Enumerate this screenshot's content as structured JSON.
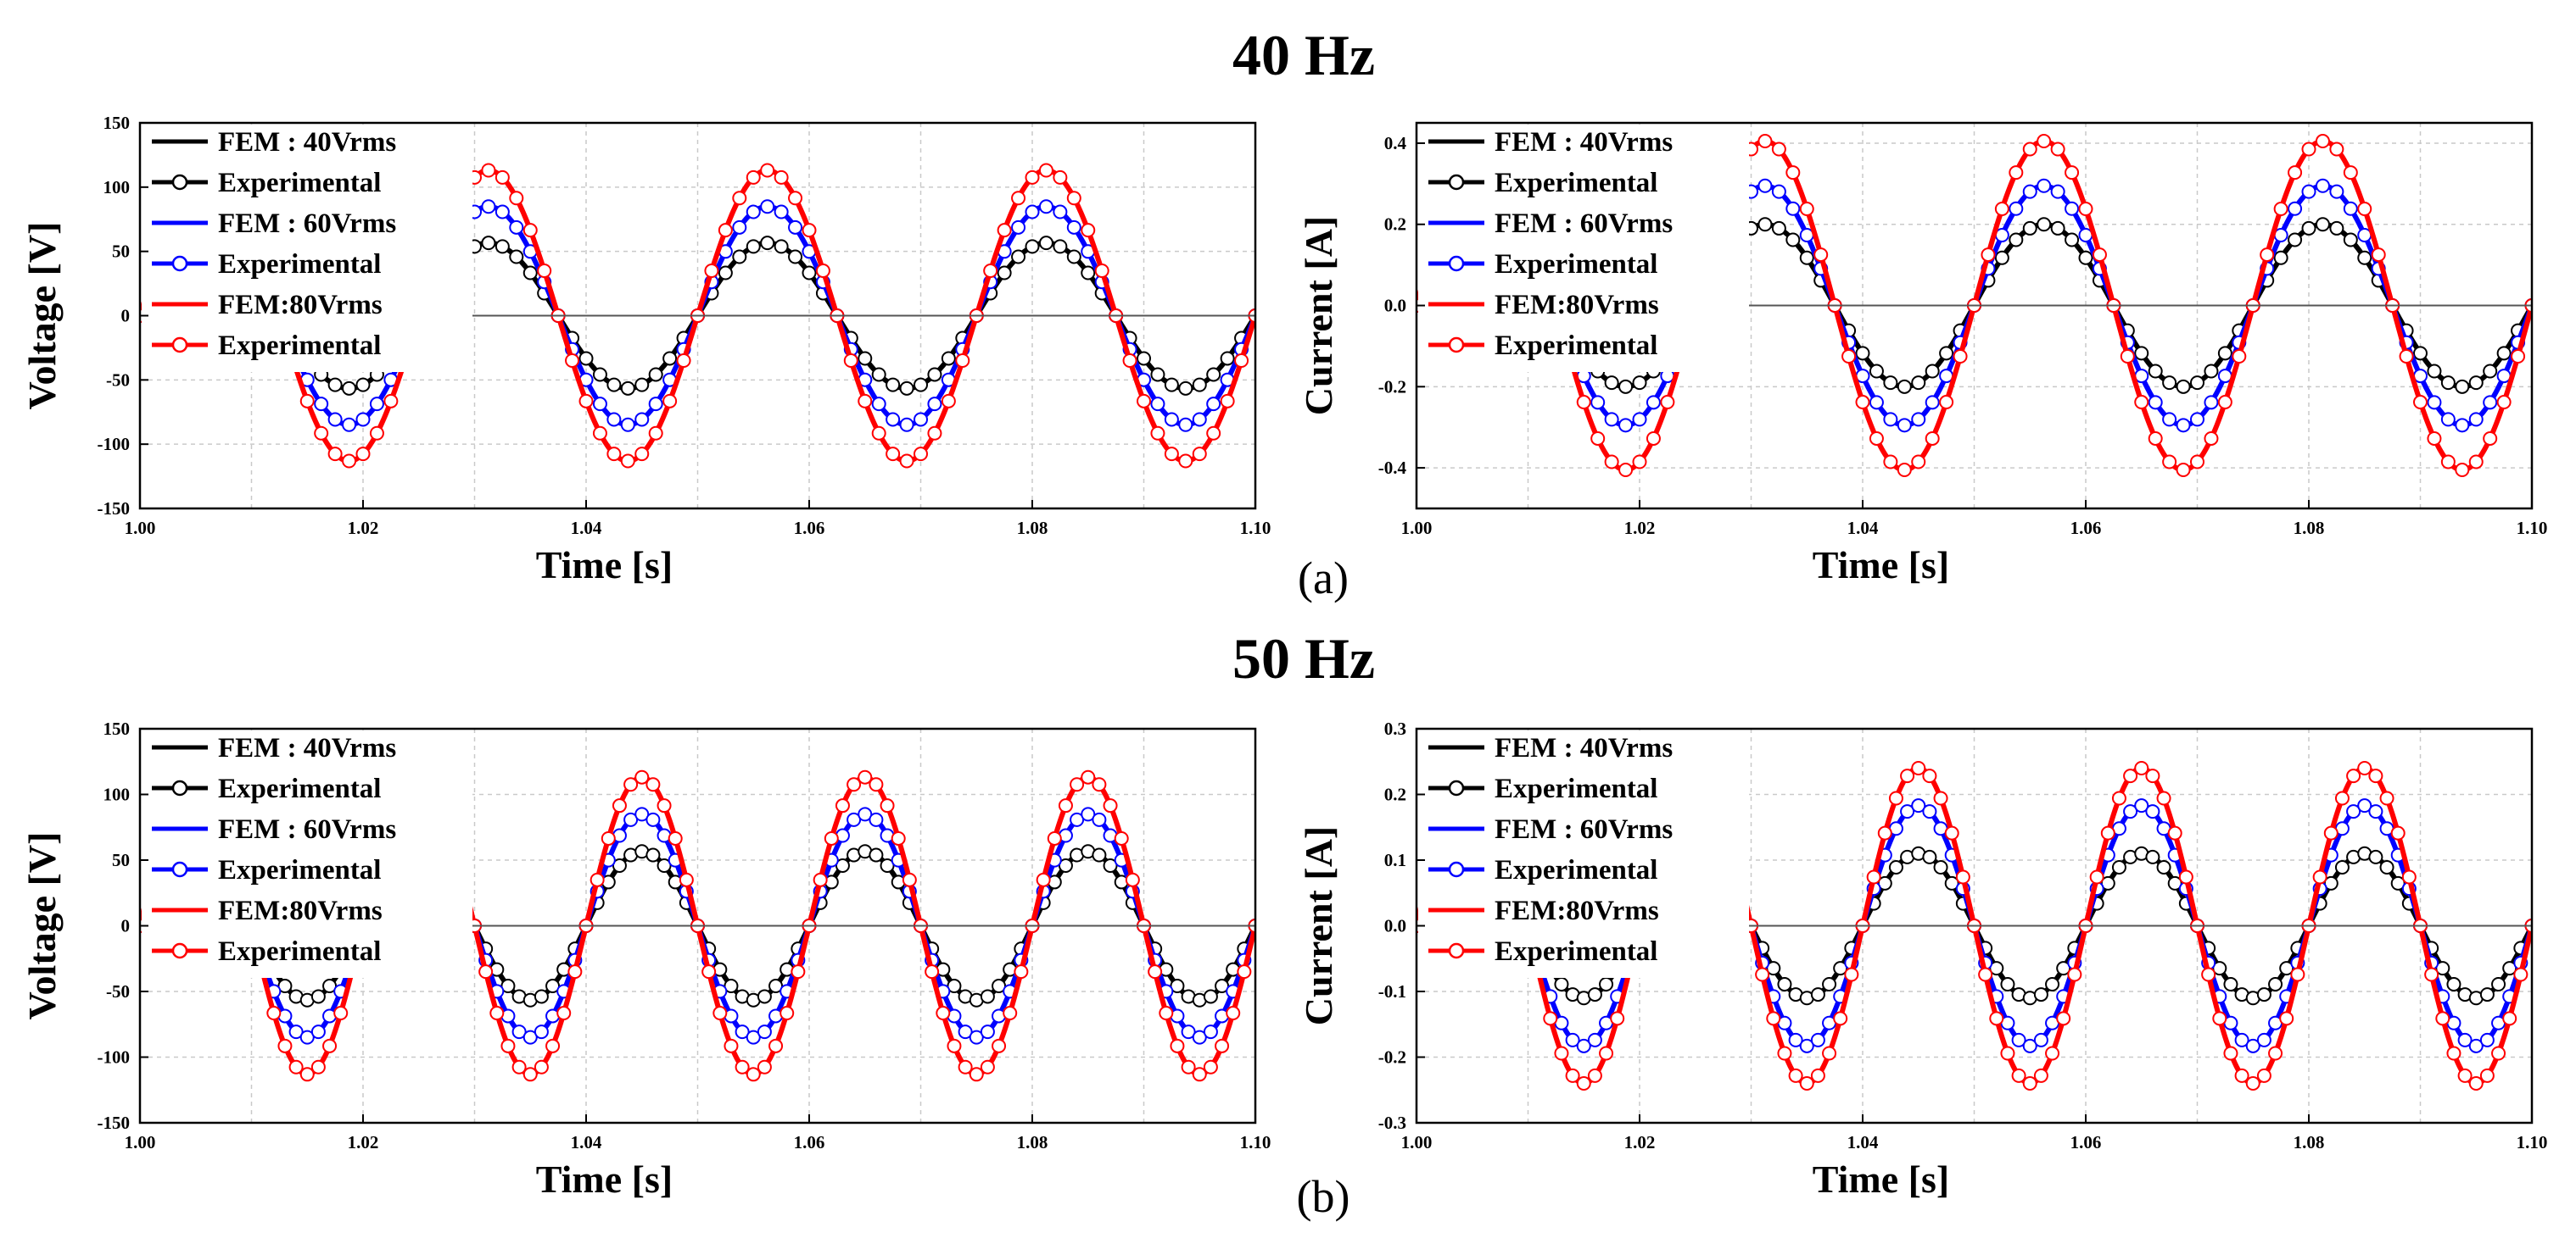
{
  "figure": {
    "sections": [
      {
        "title": "40 Hz",
        "caption": "(a)"
      },
      {
        "title": "50 Hz",
        "caption": "(b)"
      }
    ]
  },
  "colors": {
    "fem_40": "#000000",
    "fem_60": "#0000ff",
    "fem_80": "#ff0000",
    "grid": "#c9c9c9"
  },
  "chart_data": [
    {
      "type": "line",
      "xlabel": "Time [s]",
      "ylabel": "Voltage [V]",
      "xlim": [
        1.0,
        1.1
      ],
      "ylim": [
        -150,
        150
      ],
      "xticks": [
        "1.00",
        "1.02",
        "1.04",
        "1.06",
        "1.08",
        "1.10"
      ],
      "yticks": [
        "150",
        "100",
        "50",
        "0",
        "-50",
        "-100",
        "-150"
      ],
      "frequency_hz": 40,
      "legend": "top-left",
      "grid": true,
      "series": [
        {
          "name": "FEM : 40Vrms",
          "amplitude": 56.6,
          "color": "#000000",
          "markers": false
        },
        {
          "name": "Experimental",
          "amplitude": 56.6,
          "color": "#000000",
          "markers": true
        },
        {
          "name": "FEM : 60Vrms",
          "amplitude": 84.9,
          "color": "#0000ff",
          "markers": false
        },
        {
          "name": "Experimental",
          "amplitude": 84.9,
          "color": "#0000ff",
          "markers": true
        },
        {
          "name": "FEM:80Vrms",
          "amplitude": 113.1,
          "color": "#ff0000",
          "markers": false
        },
        {
          "name": "Experimental",
          "amplitude": 113.1,
          "color": "#ff0000",
          "markers": true
        }
      ]
    },
    {
      "type": "line",
      "xlabel": "Time [s]",
      "ylabel": "Current [A]",
      "xlim": [
        1.0,
        1.1
      ],
      "ylim": [
        -0.5,
        0.45
      ],
      "xticks": [
        "1.00",
        "1.02",
        "1.04",
        "1.06",
        "1.08",
        "1.10"
      ],
      "yticks": [
        "0.4",
        "0.2",
        "0.0",
        "-0.2",
        "-0.4"
      ],
      "frequency_hz": 40,
      "legend": "top-left",
      "grid": true,
      "series": [
        {
          "name": "FEM : 40Vrms",
          "amplitude": 0.2,
          "color": "#000000",
          "markers": false
        },
        {
          "name": "Experimental",
          "amplitude": 0.2,
          "color": "#000000",
          "markers": true
        },
        {
          "name": "FEM : 60Vrms",
          "amplitude": 0.295,
          "color": "#0000ff",
          "markers": false
        },
        {
          "name": "Experimental",
          "amplitude": 0.295,
          "color": "#0000ff",
          "markers": true
        },
        {
          "name": "FEM:80Vrms",
          "amplitude": 0.405,
          "color": "#ff0000",
          "markers": false
        },
        {
          "name": "Experimental",
          "amplitude": 0.405,
          "color": "#ff0000",
          "markers": true
        }
      ]
    },
    {
      "type": "line",
      "xlabel": "Time [s]",
      "ylabel": "Voltage [V]",
      "xlim": [
        1.0,
        1.1
      ],
      "ylim": [
        -150,
        150
      ],
      "xticks": [
        "1.00",
        "1.02",
        "1.04",
        "1.06",
        "1.08",
        "1.10"
      ],
      "yticks": [
        "150",
        "100",
        "50",
        "0",
        "-50",
        "-100",
        "-150"
      ],
      "frequency_hz": 50,
      "legend": "top-left",
      "grid": true,
      "series": [
        {
          "name": "FEM : 40Vrms",
          "amplitude": 56.6,
          "color": "#000000",
          "markers": false
        },
        {
          "name": "Experimental",
          "amplitude": 56.6,
          "color": "#000000",
          "markers": true
        },
        {
          "name": "FEM : 60Vrms",
          "amplitude": 84.9,
          "color": "#0000ff",
          "markers": false
        },
        {
          "name": "Experimental",
          "amplitude": 84.9,
          "color": "#0000ff",
          "markers": true
        },
        {
          "name": "FEM:80Vrms",
          "amplitude": 113.1,
          "color": "#ff0000",
          "markers": false
        },
        {
          "name": "Experimental",
          "amplitude": 113.1,
          "color": "#ff0000",
          "markers": true
        }
      ]
    },
    {
      "type": "line",
      "xlabel": "Time [s]",
      "ylabel": "Current [A]",
      "xlim": [
        1.0,
        1.1
      ],
      "ylim": [
        -0.3,
        0.3
      ],
      "xticks": [
        "1.00",
        "1.02",
        "1.04",
        "1.06",
        "1.08",
        "1.10"
      ],
      "yticks": [
        "0.3",
        "0.2",
        "0.1",
        "0.0",
        "-0.1",
        "-0.2",
        "-0.3"
      ],
      "frequency_hz": 50,
      "legend": "top-left",
      "grid": true,
      "series": [
        {
          "name": "FEM : 40Vrms",
          "amplitude": 0.11,
          "color": "#000000",
          "markers": false
        },
        {
          "name": "Experimental",
          "amplitude": 0.11,
          "color": "#000000",
          "markers": true
        },
        {
          "name": "FEM : 60Vrms",
          "amplitude": 0.183,
          "color": "#0000ff",
          "markers": false
        },
        {
          "name": "Experimental",
          "amplitude": 0.183,
          "color": "#0000ff",
          "markers": true
        },
        {
          "name": "FEM:80Vrms",
          "amplitude": 0.24,
          "color": "#ff0000",
          "markers": false
        },
        {
          "name": "Experimental",
          "amplitude": 0.24,
          "color": "#ff0000",
          "markers": true
        }
      ]
    }
  ]
}
